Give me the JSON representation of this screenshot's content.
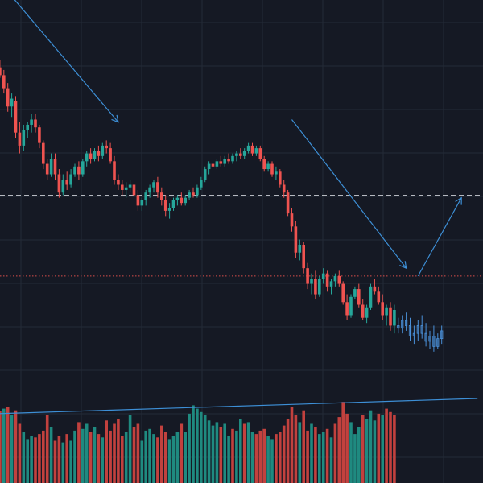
{
  "colors": {
    "background": "#151924",
    "grid": "#232a37",
    "bull": "#26a69a",
    "bear": "#ef5350",
    "projection": "#4a90d9",
    "drawing": "#3d8fd6",
    "support_line": "#c8cbd1",
    "price_line": "#ef5350",
    "volume_bull": "#1f8a80",
    "volume_bear": "#c2413e"
  },
  "chart_data": {
    "type": "candlestick",
    "title": "",
    "xlabel": "",
    "ylabel": "",
    "grid": true,
    "legend": "none",
    "price_range": [
      0,
      100
    ],
    "volume_range": [
      0,
      100
    ],
    "candles": [
      [
        93,
        96,
        89,
        90
      ],
      [
        90,
        92,
        83,
        85
      ],
      [
        85,
        87,
        76,
        78
      ],
      [
        78,
        83,
        74,
        81
      ],
      [
        80,
        82,
        66,
        68
      ],
      [
        68,
        72,
        60,
        63
      ],
      [
        63,
        71,
        61,
        69
      ],
      [
        69,
        72,
        66,
        71
      ],
      [
        71,
        75,
        68,
        73
      ],
      [
        73,
        75,
        68,
        70
      ],
      [
        70,
        71,
        62,
        64
      ],
      [
        64,
        65,
        54,
        56
      ],
      [
        56,
        58,
        50,
        52
      ],
      [
        52,
        60,
        51,
        58
      ],
      [
        58,
        60,
        50,
        52
      ],
      [
        52,
        54,
        43,
        45
      ],
      [
        45,
        52,
        44,
        50
      ],
      [
        50,
        53,
        46,
        48
      ],
      [
        48,
        54,
        47,
        52
      ],
      [
        52,
        56,
        51,
        55
      ],
      [
        55,
        57,
        50,
        52
      ],
      [
        52,
        58,
        51,
        57
      ],
      [
        57,
        61,
        55,
        60
      ],
      [
        60,
        62,
        56,
        58
      ],
      [
        58,
        62,
        57,
        61
      ],
      [
        61,
        63,
        57,
        59
      ],
      [
        59,
        64,
        58,
        63
      ],
      [
        63,
        65,
        60,
        62
      ],
      [
        62,
        64,
        56,
        57
      ],
      [
        57,
        59,
        48,
        50
      ],
      [
        50,
        52,
        46,
        48
      ],
      [
        48,
        50,
        44,
        46
      ],
      [
        46,
        49,
        43,
        47
      ],
      [
        47,
        50,
        45,
        48
      ],
      [
        48,
        50,
        42,
        44
      ],
      [
        44,
        46,
        38,
        40
      ],
      [
        40,
        43,
        38,
        42
      ],
      [
        42,
        46,
        40,
        45
      ],
      [
        45,
        48,
        43,
        47
      ],
      [
        47,
        50,
        45,
        49
      ],
      [
        49,
        51,
        43,
        45
      ],
      [
        45,
        47,
        40,
        42
      ],
      [
        42,
        44,
        36,
        38
      ],
      [
        38,
        41,
        35,
        39
      ],
      [
        39,
        43,
        38,
        42
      ],
      [
        42,
        44,
        40,
        43
      ],
      [
        43,
        45,
        40,
        41
      ],
      [
        41,
        44,
        40,
        43
      ],
      [
        43,
        46,
        42,
        45
      ],
      [
        45,
        47,
        43,
        44
      ],
      [
        44,
        48,
        43,
        47
      ],
      [
        47,
        51,
        46,
        50
      ],
      [
        50,
        55,
        49,
        54
      ],
      [
        54,
        57,
        52,
        56
      ],
      [
        56,
        58,
        53,
        55
      ],
      [
        55,
        58,
        54,
        57
      ],
      [
        57,
        59,
        55,
        56
      ],
      [
        56,
        59,
        55,
        58
      ],
      [
        58,
        60,
        56,
        57
      ],
      [
        57,
        60,
        56,
        59
      ],
      [
        59,
        61,
        57,
        60
      ],
      [
        60,
        62,
        58,
        59
      ],
      [
        59,
        62,
        58,
        61
      ],
      [
        61,
        64,
        60,
        63
      ],
      [
        63,
        64,
        59,
        60
      ],
      [
        60,
        63,
        59,
        62
      ],
      [
        62,
        63,
        57,
        58
      ],
      [
        58,
        59,
        53,
        54
      ],
      [
        54,
        57,
        53,
        56
      ],
      [
        56,
        57,
        51,
        52
      ],
      [
        52,
        55,
        50,
        53
      ],
      [
        53,
        54,
        47,
        48
      ],
      [
        48,
        50,
        43,
        45
      ],
      [
        45,
        46,
        36,
        37
      ],
      [
        37,
        39,
        30,
        32
      ],
      [
        32,
        34,
        20,
        22
      ],
      [
        22,
        27,
        19,
        25
      ],
      [
        25,
        26,
        14,
        16
      ],
      [
        16,
        18,
        8,
        10
      ],
      [
        10,
        14,
        6,
        12
      ],
      [
        12,
        15,
        4,
        6
      ],
      [
        6,
        13,
        5,
        12
      ],
      [
        12,
        16,
        10,
        14
      ],
      [
        14,
        15,
        7,
        9
      ],
      [
        9,
        12,
        6,
        11
      ],
      [
        11,
        14,
        9,
        13
      ],
      [
        13,
        15,
        9,
        10
      ],
      [
        10,
        11,
        2,
        3
      ],
      [
        3,
        6,
        -4,
        -2
      ],
      [
        -2,
        6,
        -3,
        5
      ],
      [
        5,
        9,
        4,
        8
      ],
      [
        8,
        10,
        1,
        2
      ],
      [
        2,
        4,
        -4,
        -3
      ],
      [
        -3,
        2,
        -5,
        1
      ],
      [
        1,
        10,
        0,
        9
      ],
      [
        9,
        12,
        6,
        7
      ],
      [
        7,
        9,
        2,
        3
      ],
      [
        3,
        6,
        -4,
        -2
      ],
      [
        -2,
        2,
        -6,
        1
      ],
      [
        1,
        3,
        -8,
        -6
      ],
      [
        -6,
        2,
        -9,
        0
      ]
    ],
    "projection_candles": [
      [
        -6,
        -3,
        -9,
        -7
      ],
      [
        -7,
        -2,
        -9,
        -4
      ],
      [
        -4,
        -1,
        -8,
        -6
      ],
      [
        -6,
        -3,
        -12,
        -10
      ],
      [
        -10,
        -6,
        -13,
        -9
      ],
      [
        -9,
        -4,
        -12,
        -6
      ],
      [
        -6,
        -2,
        -11,
        -9
      ],
      [
        -9,
        -5,
        -14,
        -12
      ],
      [
        -12,
        -8,
        -15,
        -10
      ],
      [
        -10,
        -6,
        -16,
        -14
      ],
      [
        -14,
        -9,
        -15,
        -11
      ],
      [
        -11,
        -6,
        -13,
        -8
      ]
    ],
    "volume": [
      [
        85,
        "bear"
      ],
      [
        88,
        "bull"
      ],
      [
        90,
        "bear"
      ],
      [
        80,
        "bull"
      ],
      [
        86,
        "bear"
      ],
      [
        70,
        "bear"
      ],
      [
        60,
        "bull"
      ],
      [
        52,
        "bull"
      ],
      [
        56,
        "bull"
      ],
      [
        54,
        "bear"
      ],
      [
        58,
        "bear"
      ],
      [
        62,
        "bear"
      ],
      [
        80,
        "bear"
      ],
      [
        66,
        "bull"
      ],
      [
        50,
        "bear"
      ],
      [
        56,
        "bear"
      ],
      [
        48,
        "bull"
      ],
      [
        58,
        "bear"
      ],
      [
        50,
        "bull"
      ],
      [
        62,
        "bull"
      ],
      [
        72,
        "bear"
      ],
      [
        64,
        "bull"
      ],
      [
        70,
        "bull"
      ],
      [
        60,
        "bear"
      ],
      [
        66,
        "bull"
      ],
      [
        58,
        "bear"
      ],
      [
        54,
        "bull"
      ],
      [
        74,
        "bear"
      ],
      [
        62,
        "bear"
      ],
      [
        70,
        "bear"
      ],
      [
        76,
        "bear"
      ],
      [
        56,
        "bear"
      ],
      [
        60,
        "bull"
      ],
      [
        80,
        "bull"
      ],
      [
        66,
        "bear"
      ],
      [
        70,
        "bear"
      ],
      [
        50,
        "bull"
      ],
      [
        62,
        "bull"
      ],
      [
        64,
        "bull"
      ],
      [
        58,
        "bull"
      ],
      [
        54,
        "bear"
      ],
      [
        68,
        "bear"
      ],
      [
        60,
        "bear"
      ],
      [
        52,
        "bull"
      ],
      [
        56,
        "bull"
      ],
      [
        60,
        "bull"
      ],
      [
        70,
        "bear"
      ],
      [
        60,
        "bull"
      ],
      [
        82,
        "bull"
      ],
      [
        92,
        "bull"
      ],
      [
        88,
        "bull"
      ],
      [
        84,
        "bull"
      ],
      [
        80,
        "bull"
      ],
      [
        74,
        "bull"
      ],
      [
        68,
        "bull"
      ],
      [
        72,
        "bull"
      ],
      [
        66,
        "bear"
      ],
      [
        70,
        "bull"
      ],
      [
        56,
        "bull"
      ],
      [
        64,
        "bear"
      ],
      [
        62,
        "bull"
      ],
      [
        76,
        "bull"
      ],
      [
        70,
        "bear"
      ],
      [
        72,
        "bull"
      ],
      [
        60,
        "bull"
      ],
      [
        58,
        "bear"
      ],
      [
        62,
        "bear"
      ],
      [
        64,
        "bear"
      ],
      [
        56,
        "bull"
      ],
      [
        52,
        "bull"
      ],
      [
        58,
        "bear"
      ],
      [
        60,
        "bear"
      ],
      [
        68,
        "bear"
      ],
      [
        76,
        "bear"
      ],
      [
        90,
        "bear"
      ],
      [
        80,
        "bear"
      ],
      [
        72,
        "bull"
      ],
      [
        86,
        "bear"
      ],
      [
        62,
        "bear"
      ],
      [
        70,
        "bull"
      ],
      [
        66,
        "bear"
      ],
      [
        58,
        "bull"
      ],
      [
        60,
        "bull"
      ],
      [
        64,
        "bear"
      ],
      [
        54,
        "bull"
      ],
      [
        70,
        "bear"
      ],
      [
        78,
        "bear"
      ],
      [
        96,
        "bear"
      ],
      [
        82,
        "bear"
      ],
      [
        72,
        "bull"
      ],
      [
        58,
        "bull"
      ],
      [
        66,
        "bull"
      ],
      [
        80,
        "bear"
      ],
      [
        76,
        "bull"
      ],
      [
        86,
        "bull"
      ],
      [
        74,
        "bull"
      ],
      [
        82,
        "bear"
      ],
      [
        80,
        "bull"
      ],
      [
        88,
        "bear"
      ],
      [
        84,
        "bear"
      ],
      [
        80,
        "bear"
      ]
    ],
    "horizontal_lines": [
      {
        "name": "support-line",
        "value": 44,
        "style": "dashed"
      },
      {
        "name": "price-line",
        "value": 13,
        "style": "dotted"
      }
    ],
    "trend_lines": [
      {
        "name": "downtrend-arrow-1",
        "from": [
          3,
          122
        ],
        "to": [
          31,
          72
        ]
      },
      {
        "name": "downtrend-arrow-2",
        "from": [
          75,
          73
        ],
        "to": [
          104,
          16
        ]
      },
      {
        "name": "projected-rebound-arrow",
        "from": [
          107,
          13
        ],
        "to": [
          118,
          43
        ]
      }
    ],
    "volume_trend_line": {
      "from": [
        0,
        82
      ],
      "to": [
        118,
        100
      ]
    }
  }
}
